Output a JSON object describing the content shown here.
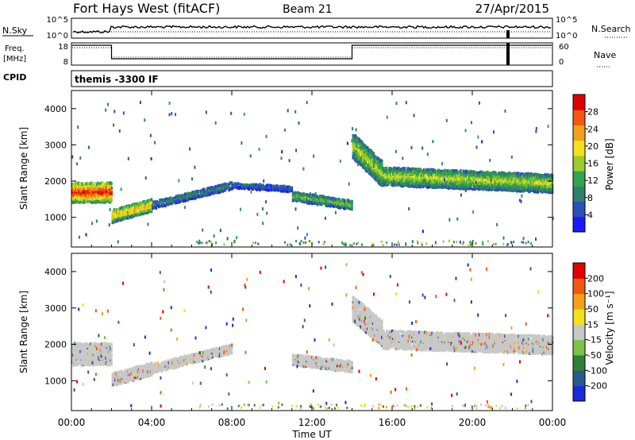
{
  "header": {
    "station": "Fort Hays West (fitACF)",
    "beam": "Beam 21",
    "date": "27/Apr/2015"
  },
  "noise_panel": {
    "left_label": "N.Sky",
    "right_label": "N.Search",
    "left_ticks": [
      "10^5",
      "10^0"
    ],
    "right_ticks": [
      "10^5",
      "10^0"
    ]
  },
  "freq_panel": {
    "left_label_1": "Freq.",
    "left_label_2": "[MHz]",
    "right_label": "Nave",
    "left_ticks": [
      "18",
      "8"
    ],
    "right_ticks": [
      "60",
      "0"
    ]
  },
  "cpid_panel": {
    "label": "CPID",
    "text": "themis -3300 IF"
  },
  "x_axis": {
    "label": "Time UT",
    "ticks": [
      "00:00",
      "04:00",
      "08:00",
      "12:00",
      "16:00",
      "20:00",
      "00:00"
    ]
  },
  "power_panel": {
    "ylabel": "Slant Range [km]",
    "y_ticks": [
      "1000",
      "2000",
      "3000",
      "4000"
    ],
    "colorbar_label": "Power [dB]",
    "colorbar_ticks": [
      "4",
      "8",
      "12",
      "16",
      "20",
      "24",
      "28"
    ]
  },
  "velocity_panel": {
    "ylabel": "Slant Range [km]",
    "y_ticks": [
      "1000",
      "2000",
      "3000",
      "4000"
    ],
    "colorbar_label": "Velocity [m s⁻¹]",
    "colorbar_ticks": [
      "200",
      "100",
      "50",
      "15",
      "-15",
      "-50",
      "-100",
      "-200"
    ]
  },
  "colors": {
    "power_scale": [
      "#1a1aff",
      "#2c4fb8",
      "#2f7f6a",
      "#34a34f",
      "#9acc2a",
      "#f2e21a",
      "#f5a01a",
      "#f05a10",
      "#e00000"
    ],
    "velocity_scale": [
      "#1a2ad8",
      "#2a5a8c",
      "#2f7f3a",
      "#7cc24a",
      "#c8c8c8",
      "#f2e21a",
      "#f5a01a",
      "#f05a10",
      "#e00000"
    ],
    "ground_scatter": "#c8c8c8"
  },
  "chart_data": [
    {
      "type": "heatmap",
      "title": "Fort Hays West (fitACF) Beam 21",
      "quantity": "Power [dB]",
      "xlabel": "Time UT",
      "ylabel": "Slant Range [km]",
      "xlim_hours": [
        0,
        24
      ],
      "ylim_km": [
        180,
        4500
      ],
      "color_range": [
        0,
        30
      ],
      "scatter_bands": [
        {
          "t_start": 0.0,
          "t_end": 2.0,
          "range_center_km": [
            1700,
            1700
          ],
          "width_km": 550,
          "power_dB": 24
        },
        {
          "t_start": 2.0,
          "t_end": 4.0,
          "range_center_km": [
            1050,
            1350
          ],
          "width_km": 350,
          "power_dB": 18
        },
        {
          "t_start": 4.0,
          "t_end": 8.0,
          "range_center_km": [
            1350,
            1900
          ],
          "width_km": 200,
          "power_dB": 8
        },
        {
          "t_start": 8.0,
          "t_end": 11.0,
          "range_center_km": [
            1900,
            1800
          ],
          "width_km": 150,
          "power_dB": 6
        },
        {
          "t_start": 11.0,
          "t_end": 14.0,
          "range_center_km": [
            1600,
            1350
          ],
          "width_km": 250,
          "power_dB": 12
        },
        {
          "t_start": 14.0,
          "t_end": 15.5,
          "range_center_km": [
            3000,
            2200
          ],
          "width_km": 700,
          "power_dB": 14
        },
        {
          "t_start": 15.5,
          "t_end": 24.0,
          "range_center_km": [
            2150,
            1950
          ],
          "width_km": 500,
          "power_dB": 14
        }
      ]
    },
    {
      "type": "heatmap",
      "title": "Fort Hays West (fitACF) Beam 21",
      "quantity": "Velocity [m s-1]",
      "xlabel": "Time UT",
      "ylabel": "Slant Range [km]",
      "xlim_hours": [
        0,
        24
      ],
      "ylim_km": [
        180,
        4500
      ],
      "color_range": [
        -250,
        250
      ],
      "scatter_bands": [
        {
          "t_start": 0.0,
          "t_end": 2.0,
          "range_center_km": [
            1750,
            1750
          ],
          "width_km": 600,
          "velocity_ms": 0
        },
        {
          "t_start": 2.0,
          "t_end": 4.0,
          "range_center_km": [
            1050,
            1350
          ],
          "width_km": 350,
          "velocity_ms": 0
        },
        {
          "t_start": 4.0,
          "t_end": 8.0,
          "range_center_km": [
            1350,
            1900
          ],
          "width_km": 250,
          "velocity_ms": 0
        },
        {
          "t_start": 11.0,
          "t_end": 14.0,
          "range_center_km": [
            1600,
            1400
          ],
          "width_km": 300,
          "velocity_ms": 0
        },
        {
          "t_start": 14.0,
          "t_end": 15.5,
          "range_center_km": [
            3000,
            2300
          ],
          "width_km": 700,
          "velocity_ms": 0
        },
        {
          "t_start": 15.5,
          "t_end": 24.0,
          "range_center_km": [
            2150,
            2000
          ],
          "width_km": 500,
          "velocity_ms": 0
        }
      ]
    }
  ]
}
